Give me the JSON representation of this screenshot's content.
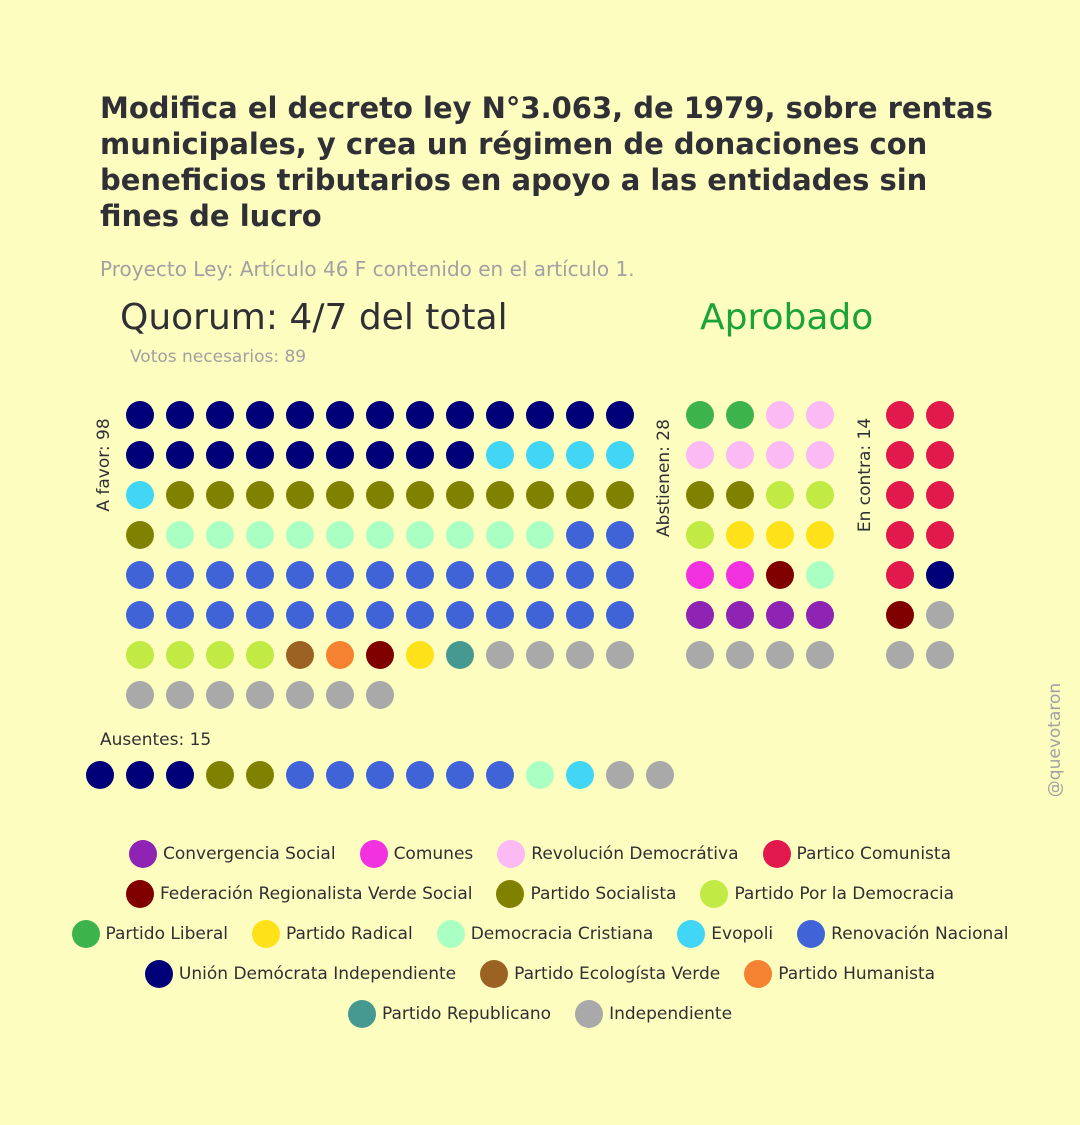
{
  "title": "Modifica el decreto ley N°3.063, de 1979, sobre rentas municipales, y crea un régimen de donaciones con beneficios tributarios en apoyo a las entidades sin fines de lucro",
  "subtitle": "Proyecto Ley: Artículo 46 F contenido en el artículo 1.",
  "quorum": "Quorum: 4/7 del total",
  "result": "Aprobado",
  "result_color": "#1aa336",
  "votes_needed": "Votos necesarios: 89",
  "handle": "@quevotaron",
  "colors": {
    "CS": "#8e23b4",
    "COM": "#f231e0",
    "RD": "#fcbaf5",
    "PC": "#e2194c",
    "FRVS": "#800000",
    "PS": "#808001",
    "PPD": "#c1ea45",
    "PL": "#3cb44b",
    "PR": "#ffe11a",
    "DC": "#aaffc2",
    "EVO": "#41d5f6",
    "RN": "#4163d8",
    "UDI": "#000078",
    "PEV": "#9b6224",
    "PH": "#f58231",
    "PREP": "#469991",
    "IND": "#a9a9a9"
  },
  "chart_data": {
    "type": "waffle",
    "groups": [
      {
        "key": "favor",
        "label": "A favor: 98",
        "count": 98,
        "cols": 13,
        "parties": [
          [
            "UDI",
            22
          ],
          [
            "EVO",
            5
          ],
          [
            "PS",
            13
          ],
          [
            "DC",
            10
          ],
          [
            "RN",
            28
          ],
          [
            "PPD",
            4
          ],
          [
            "PEV",
            1
          ],
          [
            "PH",
            1
          ],
          [
            "FRVS",
            1
          ],
          [
            "PR",
            1
          ],
          [
            "PREP",
            1
          ],
          [
            "IND",
            11
          ]
        ]
      },
      {
        "key": "abst",
        "label": "Abstienen: 28",
        "count": 28,
        "cols": 4,
        "parties": [
          [
            "PL",
            2
          ],
          [
            "RD",
            6
          ],
          [
            "PS",
            2
          ],
          [
            "PPD",
            3
          ],
          [
            "PR",
            3
          ],
          [
            "COM",
            2
          ],
          [
            "FRVS",
            1
          ],
          [
            "DC",
            1
          ],
          [
            "CS",
            4
          ],
          [
            "IND",
            4
          ]
        ]
      },
      {
        "key": "contra",
        "label": "En contra: 14",
        "count": 14,
        "cols": 2,
        "parties": [
          [
            "PC",
            9
          ],
          [
            "UDI",
            1
          ],
          [
            "FRVS",
            1
          ],
          [
            "IND",
            3
          ]
        ]
      },
      {
        "key": "ausentes",
        "label": "Ausentes: 15",
        "count": 15,
        "cols": 15,
        "parties": [
          [
            "UDI",
            3
          ],
          [
            "PS",
            2
          ],
          [
            "RN",
            6
          ],
          [
            "DC",
            1
          ],
          [
            "EVO",
            1
          ],
          [
            "IND",
            2
          ]
        ]
      }
    ]
  },
  "legend": [
    [
      {
        "key": "CS",
        "label": "Convergencia Social"
      },
      {
        "key": "COM",
        "label": "Comunes"
      },
      {
        "key": "RD",
        "label": "Revolución Democrátiva"
      },
      {
        "key": "PC",
        "label": "Partico Comunista"
      }
    ],
    [
      {
        "key": "FRVS",
        "label": "Federación Regionalista Verde Social"
      },
      {
        "key": "PS",
        "label": "Partido Socialista"
      },
      {
        "key": "PPD",
        "label": "Partido Por la Democracia"
      }
    ],
    [
      {
        "key": "PL",
        "label": "Partido Liberal"
      },
      {
        "key": "PR",
        "label": "Partido Radical"
      },
      {
        "key": "DC",
        "label": "Democracia Cristiana"
      },
      {
        "key": "EVO",
        "label": "Evopoli"
      },
      {
        "key": "RN",
        "label": "Renovación Nacional"
      }
    ],
    [
      {
        "key": "UDI",
        "label": "Unión Demócrata Independiente"
      },
      {
        "key": "PEV",
        "label": "Partido Ecologísta Verde"
      },
      {
        "key": "PH",
        "label": "Partido Humanista"
      }
    ],
    [
      {
        "key": "PREP",
        "label": "Partido Republicano"
      },
      {
        "key": "IND",
        "label": "Independiente"
      }
    ]
  ]
}
